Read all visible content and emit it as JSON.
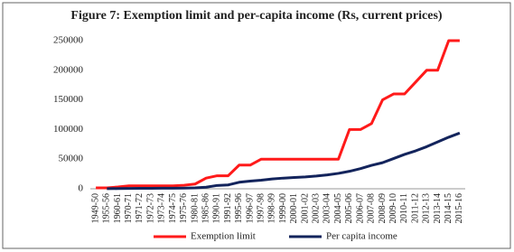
{
  "chart_data": {
    "type": "line",
    "title": "Figure 7: Exemption limit and per-capita income (Rs, current prices)",
    "categories": [
      "1949-50",
      "1955-56",
      "1960-61",
      "1970-71",
      "1971-72",
      "1972-73",
      "1973-74",
      "1974-75",
      "1975-76",
      "1980-81",
      "1985-86",
      "1990-91",
      "1991-92",
      "1995-96",
      "1996-97",
      "1997-98",
      "1998-99",
      "1999-00",
      "2000-01",
      "2001-02",
      "2002-03",
      "2003-04",
      "2004-05",
      "2005-06",
      "2006-07",
      "2007-08",
      "2008-09",
      "2009-10",
      "2010-11",
      "2011-12",
      "2012-13",
      "2013-14",
      "2014-15",
      "2015-16"
    ],
    "series": [
      {
        "name": "Exemption limit",
        "color": "#ff1a1a",
        "values": [
          1500,
          1500,
          3000,
          5000,
          5000,
          5000,
          5000,
          5000,
          6000,
          8000,
          18000,
          22000,
          22000,
          40000,
          40000,
          50000,
          50000,
          50000,
          50000,
          50000,
          50000,
          50000,
          50000,
          100000,
          100000,
          110000,
          150000,
          160000,
          160000,
          180000,
          200000,
          200000,
          250000,
          250000
        ]
      },
      {
        "name": "Per capita income",
        "color": "#13245c",
        "values": [
          null,
          250,
          300,
          600,
          700,
          800,
          900,
          1000,
          1100,
          1600,
          2700,
          5600,
          6500,
          11000,
          13000,
          14500,
          16500,
          18000,
          19000,
          20000,
          21500,
          23500,
          26000,
          29500,
          34000,
          39500,
          44000,
          51000,
          58000,
          64000,
          71000,
          79000,
          87000,
          94000
        ]
      }
    ],
    "ylim": [
      0,
      250000
    ],
    "yticks": [
      0,
      50000,
      100000,
      150000,
      200000,
      250000
    ],
    "grid": false,
    "legend": "bottom"
  }
}
